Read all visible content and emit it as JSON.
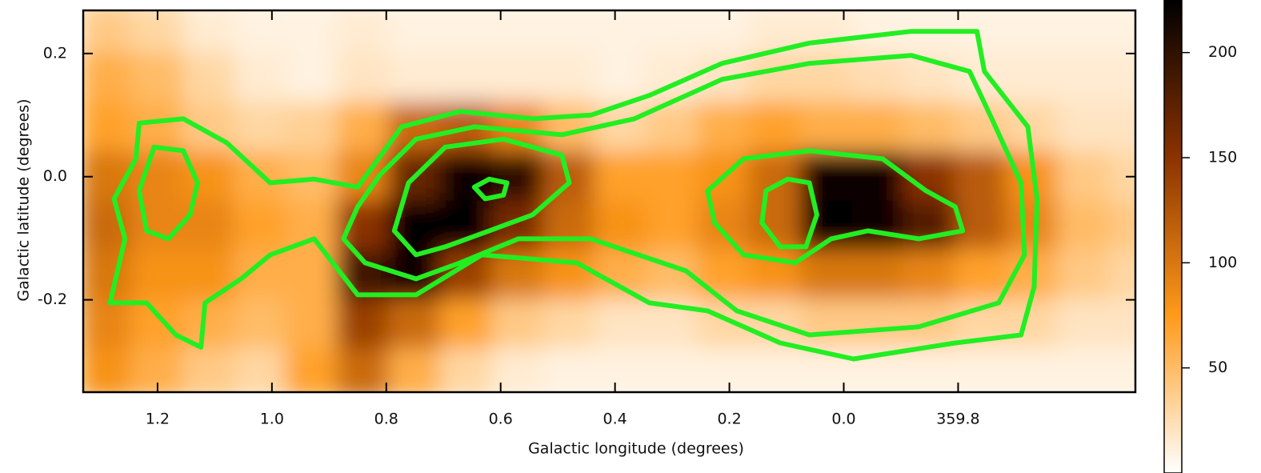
{
  "chart_data": {
    "type": "heatmap",
    "xlabel": "Galactic longitude (degrees)",
    "ylabel": "Galactic latitude (degrees)",
    "xlim": [
      1.33,
      -0.51
    ],
    "ylim": [
      -0.35,
      0.27
    ],
    "xticks": [
      1.2,
      {
        "value": 1,
        "label": "1.0"
      },
      0.8,
      0.6,
      0.4,
      0.2,
      {
        "value": 0,
        "label": "0.0"
      },
      {
        "value": -0.2,
        "label": "359.8"
      }
    ],
    "yticks": [
      -0.2,
      {
        "value": 0,
        "label": "0.0"
      },
      0.2
    ],
    "x": [
      1.29,
      1.2,
      1.11,
      1.02,
      0.93,
      0.84,
      0.75,
      0.66,
      0.57,
      0.48,
      0.39,
      0.3,
      0.21,
      0.12,
      0.03,
      -0.06,
      -0.15,
      -0.24,
      -0.33,
      -0.42,
      -0.51
    ],
    "y": [
      0.24,
      0.16,
      0.08,
      0.0,
      -0.08,
      -0.16,
      -0.24,
      -0.32
    ],
    "z": [
      [
        40,
        30,
        15,
        10,
        10,
        15,
        10,
        10,
        10,
        10,
        10,
        10,
        10,
        15,
        15,
        10,
        10,
        10,
        10,
        10,
        10
      ],
      [
        60,
        50,
        30,
        15,
        10,
        20,
        15,
        15,
        15,
        15,
        10,
        15,
        20,
        30,
        30,
        25,
        20,
        15,
        15,
        15,
        15
      ],
      [
        70,
        60,
        40,
        30,
        35,
        60,
        110,
        120,
        90,
        50,
        30,
        40,
        60,
        70,
        60,
        60,
        50,
        40,
        30,
        20,
        20
      ],
      [
        100,
        90,
        80,
        60,
        50,
        90,
        170,
        220,
        200,
        120,
        70,
        70,
        80,
        110,
        220,
        220,
        150,
        120,
        80,
        40,
        30
      ],
      [
        110,
        90,
        90,
        70,
        60,
        150,
        230,
        230,
        160,
        110,
        80,
        70,
        90,
        110,
        230,
        220,
        180,
        120,
        90,
        50,
        40
      ],
      [
        100,
        80,
        80,
        60,
        60,
        190,
        220,
        140,
        100,
        80,
        60,
        50,
        70,
        80,
        100,
        100,
        90,
        70,
        60,
        40,
        30
      ],
      [
        90,
        70,
        60,
        50,
        60,
        140,
        110,
        70,
        40,
        30,
        20,
        20,
        30,
        30,
        40,
        40,
        40,
        30,
        30,
        20,
        20
      ],
      [
        80,
        60,
        40,
        30,
        70,
        110,
        60,
        30,
        15,
        10,
        10,
        10,
        10,
        10,
        10,
        10,
        10,
        10,
        10,
        10,
        10
      ]
    ],
    "colormap": [
      "#ffffff",
      "#ff9a1a",
      "#8b3300",
      "#000000"
    ],
    "clim": [
      0,
      225
    ],
    "cticks": [
      50,
      100,
      150,
      200
    ],
    "contour_color": "#22ee22",
    "contours": [
      {
        "x": [
          1.232,
          1.155,
          1.079,
          1.003,
          0.926,
          0.85,
          0.773,
          0.671,
          0.544,
          0.442,
          0.34,
          0.213,
          0.06,
          -0.118,
          -0.233,
          -0.246,
          -0.322,
          -0.338,
          -0.333,
          -0.31,
          -0.195,
          -0.017,
          0.111,
          0.238,
          0.34,
          0.467,
          0.633,
          0.748,
          0.85,
          0.926,
          1.003,
          1.054,
          1.117,
          1.124,
          1.168,
          1.219,
          1.283,
          1.257,
          1.276,
          1.238
        ],
        "y": [
          0.087,
          0.094,
          0.055,
          -0.01,
          -0.004,
          -0.017,
          0.081,
          0.106,
          0.094,
          0.1,
          0.132,
          0.184,
          0.217,
          0.236,
          0.236,
          0.171,
          0.081,
          -0.036,
          -0.179,
          -0.257,
          -0.27,
          -0.296,
          -0.27,
          -0.218,
          -0.205,
          -0.14,
          -0.127,
          -0.192,
          -0.192,
          -0.101,
          -0.127,
          -0.166,
          -0.205,
          -0.277,
          -0.257,
          -0.205,
          -0.205,
          -0.101,
          -0.036,
          0.029
        ]
      },
      {
        "x": [
          0.748,
          0.646,
          0.493,
          0.366,
          0.213,
          0.06,
          -0.118,
          -0.22,
          -0.259,
          -0.31,
          -0.316,
          -0.271,
          -0.131,
          0.06,
          0.187,
          0.276,
          0.442,
          0.569,
          0.671,
          0.748,
          0.837,
          0.875,
          0.85,
          0.811
        ],
        "y": [
          0.061,
          0.081,
          0.068,
          0.094,
          0.158,
          0.184,
          0.197,
          0.171,
          0.094,
          -0.01,
          -0.127,
          -0.205,
          -0.244,
          -0.257,
          -0.218,
          -0.153,
          -0.101,
          -0.101,
          -0.14,
          -0.166,
          -0.14,
          -0.101,
          -0.049,
          0.003
        ]
      },
      {
        "x": [
          0.761,
          0.697,
          0.595,
          0.493,
          0.48,
          0.544,
          0.62,
          0.697,
          0.748,
          0.786
        ],
        "y": [
          -0.01,
          0.048,
          0.061,
          0.035,
          -0.01,
          -0.062,
          -0.088,
          -0.114,
          -0.127,
          -0.088
        ]
      },
      {
        "x": [
          0.646,
          0.62,
          0.589,
          0.595,
          0.627
        ],
        "y": [
          -0.017,
          -0.004,
          -0.01,
          -0.03,
          -0.036
        ]
      },
      {
        "x": [
          0.238,
          0.175,
          0.06,
          -0.068,
          -0.144,
          -0.195,
          -0.208,
          -0.131,
          -0.042,
          0.022,
          0.085,
          0.175,
          0.226
        ],
        "y": [
          -0.023,
          0.029,
          0.042,
          0.029,
          -0.023,
          -0.049,
          -0.088,
          -0.101,
          -0.088,
          -0.101,
          -0.14,
          -0.127,
          -0.075
        ]
      },
      {
        "x": [
          0.136,
          0.098,
          0.06,
          0.047,
          0.066,
          0.111,
          0.143
        ],
        "y": [
          -0.023,
          -0.004,
          -0.01,
          -0.062,
          -0.114,
          -0.114,
          -0.075
        ]
      },
      {
        "x": [
          1.206,
          1.155,
          1.13,
          1.143,
          1.181,
          1.219,
          1.232
        ],
        "y": [
          0.048,
          0.042,
          -0.01,
          -0.062,
          -0.101,
          -0.088,
          -0.023
        ]
      }
    ]
  }
}
